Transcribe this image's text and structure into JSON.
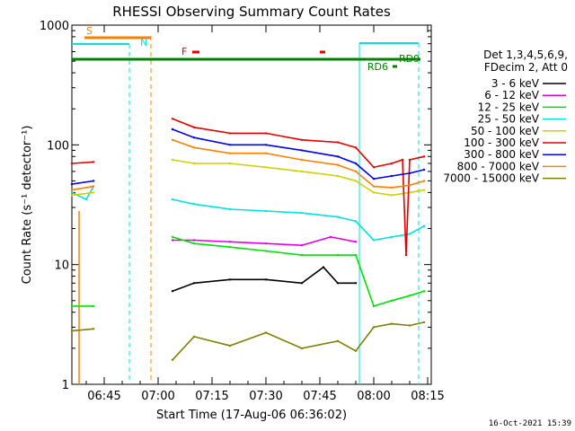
{
  "chart_data": {
    "type": "line",
    "title": "RHESSI Observing Summary Count Rates",
    "xlabel": "Start Time (17-Aug-06 06:36:02)",
    "ylabel": "Count Rate (s⁻¹ detector⁻¹)",
    "yscale": "log",
    "ylim": [
      1,
      1000
    ],
    "xlim": [
      "06:36",
      "08:16"
    ],
    "x_ticks": [
      "06:45",
      "07:00",
      "07:15",
      "07:30",
      "07:45",
      "08:00",
      "08:15"
    ],
    "y_ticks": [
      "1",
      "10",
      "100",
      "1000"
    ],
    "legend_header": [
      "Det 1,3,4,5,6,9,",
      "FDecim 2, Att 0"
    ],
    "legend_placement": "right",
    "timestamp": "16-Oct-2021 15:39",
    "series": [
      {
        "name": "3 - 6 keV",
        "color": "#000000",
        "x": [
          "07:04",
          "07:10",
          "07:20",
          "07:30",
          "07:40",
          "07:46",
          "07:50",
          "07:55"
        ],
        "values": [
          6,
          7,
          7.5,
          7.5,
          7,
          9.5,
          7,
          7
        ]
      },
      {
        "name": "6 - 12 keV",
        "color": "#e000e0",
        "x": [
          "07:04",
          "07:10",
          "07:20",
          "07:30",
          "07:40",
          "07:48",
          "07:55"
        ],
        "values": [
          16,
          16,
          15.5,
          15,
          14.5,
          17,
          15.5
        ]
      },
      {
        "name": "12 - 25 keV",
        "color": "#00e000",
        "x": [
          "06:36",
          "06:42",
          "07:04",
          "07:10",
          "07:20",
          "07:30",
          "07:40",
          "07:50",
          "07:55",
          "08:00",
          "08:05",
          "08:10",
          "08:14"
        ],
        "values": [
          4.5,
          4.5,
          17,
          15,
          14,
          13,
          12,
          12,
          12,
          4.5,
          5,
          5.5,
          6
        ]
      },
      {
        "name": "25 - 50 keV",
        "color": "#00e0e0",
        "x": [
          "06:36",
          "06:40",
          "06:42",
          "07:04",
          "07:10",
          "07:20",
          "07:30",
          "07:40",
          "07:50",
          "07:55",
          "08:00",
          "08:05",
          "08:10",
          "08:14"
        ],
        "values": [
          40,
          35,
          45,
          35,
          32,
          29,
          28,
          27,
          25,
          23,
          16,
          17,
          18,
          21
        ]
      },
      {
        "name": "50 - 100 keV",
        "color": "#d0d000",
        "x": [
          "06:36",
          "06:42",
          "07:04",
          "07:10",
          "07:20",
          "07:30",
          "07:40",
          "07:50",
          "07:55",
          "08:00",
          "08:05",
          "08:10",
          "08:14"
        ],
        "values": [
          38,
          40,
          75,
          70,
          70,
          65,
          60,
          55,
          50,
          40,
          38,
          40,
          42
        ]
      },
      {
        "name": "100 - 300 keV",
        "color": "#e00000",
        "x": [
          "06:36",
          "06:42",
          "07:04",
          "07:10",
          "07:20",
          "07:30",
          "07:40",
          "07:50",
          "07:55",
          "08:00",
          "08:05",
          "08:08",
          "08:09",
          "08:10",
          "08:14"
        ],
        "values": [
          70,
          72,
          165,
          140,
          125,
          125,
          110,
          105,
          95,
          65,
          70,
          75,
          12,
          75,
          80
        ]
      },
      {
        "name": "300 - 800 keV",
        "color": "#0000e0",
        "x": [
          "06:36",
          "06:42",
          "07:04",
          "07:10",
          "07:20",
          "07:30",
          "07:40",
          "07:50",
          "07:55",
          "08:00",
          "08:05",
          "08:10",
          "08:14"
        ],
        "values": [
          47,
          50,
          135,
          115,
          100,
          100,
          90,
          80,
          70,
          52,
          55,
          58,
          62
        ]
      },
      {
        "name": "800 - 7000 keV",
        "color": "#ff8000",
        "x": [
          "06:36",
          "06:42",
          "07:04",
          "07:10",
          "07:20",
          "07:30",
          "07:40",
          "07:50",
          "07:55",
          "08:00",
          "08:05",
          "08:10",
          "08:14"
        ],
        "values": [
          42,
          45,
          110,
          95,
          85,
          85,
          75,
          68,
          60,
          45,
          44,
          46,
          50
        ]
      },
      {
        "name": "7000 - 15000 keV",
        "color": "#808000",
        "x": [
          "06:36",
          "06:42",
          "07:04",
          "07:10",
          "07:20",
          "07:30",
          "07:40",
          "07:50",
          "07:55",
          "08:00",
          "08:05",
          "08:10",
          "08:14"
        ],
        "values": [
          2.8,
          2.9,
          1.6,
          2.5,
          2.1,
          2.7,
          2.0,
          2.3,
          1.9,
          3.0,
          3.2,
          3.1,
          3.3
        ]
      }
    ],
    "annotations": [
      {
        "label": "S",
        "color": "#ff8000"
      },
      {
        "label": "N",
        "color": "#00e0e0"
      },
      {
        "label": "F",
        "color": "#e00000"
      },
      {
        "label": "RD6",
        "color": "#008000"
      },
      {
        "label": "RD9",
        "color": "#008000"
      }
    ]
  }
}
